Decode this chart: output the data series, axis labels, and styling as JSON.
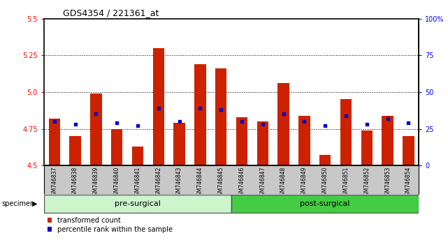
{
  "title": "GDS4354 / 221361_at",
  "samples": [
    "GSM746837",
    "GSM746838",
    "GSM746839",
    "GSM746840",
    "GSM746841",
    "GSM746842",
    "GSM746843",
    "GSM746844",
    "GSM746845",
    "GSM746846",
    "GSM746847",
    "GSM746848",
    "GSM746849",
    "GSM746850",
    "GSM746851",
    "GSM746852",
    "GSM746853",
    "GSM746854"
  ],
  "red_values": [
    4.82,
    4.7,
    4.99,
    4.75,
    4.63,
    5.3,
    4.79,
    5.19,
    5.16,
    4.83,
    4.8,
    5.06,
    4.84,
    4.57,
    4.95,
    4.74,
    4.84,
    4.7
  ],
  "blue_percentiles": [
    30,
    28,
    35,
    29,
    27,
    39,
    30,
    39,
    38,
    30,
    28,
    35,
    30,
    27,
    34,
    28,
    32,
    29
  ],
  "ymin": 4.5,
  "ymax": 5.5,
  "yticks_left": [
    4.5,
    4.75,
    5.0,
    5.25,
    5.5
  ],
  "yticks_right_pct": [
    0,
    25,
    50,
    75,
    100
  ],
  "grid_lines": [
    4.75,
    5.0,
    5.25
  ],
  "bar_color": "#cc2200",
  "dot_color": "#0000cc",
  "bar_width": 0.55,
  "xaxis_bg": "#c8c8c8",
  "pre_color": "#ccf5cc",
  "post_color": "#44cc44",
  "title_fontsize": 9,
  "tick_fontsize": 7,
  "sample_fontsize": 5.5,
  "group_fontsize": 8,
  "legend_fontsize": 7,
  "legend_items": [
    "transformed count",
    "percentile rank within the sample"
  ],
  "n_pre": 9,
  "n_post": 9
}
